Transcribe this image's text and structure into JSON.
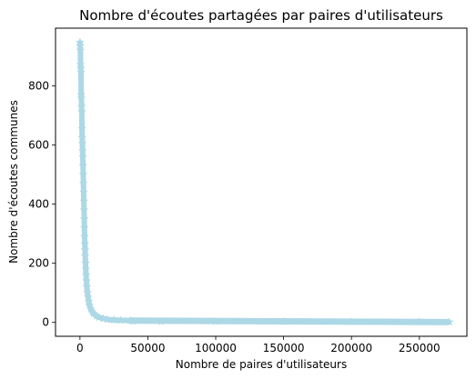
{
  "chart_data": {
    "type": "line",
    "title": "Nombre d'écoutes partagées par paires d'utilisateurs",
    "xlabel": "Nombre de paires d'utilisateurs",
    "ylabel": "Nombre d'écoutes communes",
    "xlim": [
      -18000,
      285000
    ],
    "ylim": [
      -47,
      995
    ],
    "xticks": [
      0,
      50000,
      100000,
      150000,
      200000,
      250000
    ],
    "xtick_labels": [
      "0",
      "50000",
      "100000",
      "150000",
      "200000",
      "250000"
    ],
    "yticks": [
      0,
      200,
      400,
      600,
      800
    ],
    "ytick_labels": [
      "0",
      "200",
      "400",
      "600",
      "800"
    ],
    "grid": false,
    "series": [
      {
        "color": "#add8e6",
        "marker": "star",
        "head_points": [
          [
            0,
            947
          ],
          [
            150,
            935
          ],
          [
            300,
            920
          ],
          [
            450,
            872
          ],
          [
            600,
            860
          ],
          [
            750,
            845
          ],
          [
            900,
            770
          ],
          [
            1050,
            758
          ],
          [
            1200,
            730
          ],
          [
            1350,
            712
          ],
          [
            1500,
            655
          ],
          [
            1650,
            625
          ],
          [
            1800,
            605
          ],
          [
            1950,
            580
          ],
          [
            2100,
            560
          ],
          [
            2250,
            530
          ],
          [
            2400,
            500
          ],
          [
            2550,
            470
          ],
          [
            2700,
            440
          ],
          [
            2850,
            410
          ],
          [
            3000,
            380
          ],
          [
            3150,
            350
          ],
          [
            3300,
            320
          ],
          [
            3450,
            290
          ],
          [
            3600,
            265
          ],
          [
            3750,
            245
          ],
          [
            3900,
            225
          ],
          [
            4100,
            200
          ],
          [
            4300,
            180
          ],
          [
            4500,
            160
          ],
          [
            4800,
            140
          ],
          [
            5100,
            120
          ],
          [
            5500,
            100
          ],
          [
            6000,
            85
          ],
          [
            6500,
            70
          ],
          [
            7000,
            58
          ],
          [
            8000,
            45
          ],
          [
            9000,
            36
          ],
          [
            10000,
            30
          ],
          [
            12000,
            22
          ],
          [
            14000,
            17
          ],
          [
            17000,
            13
          ],
          [
            20000,
            10
          ],
          [
            25000,
            8
          ],
          [
            30000,
            7
          ],
          [
            37000,
            6
          ],
          [
            39000,
            4
          ],
          [
            60000,
            3
          ],
          [
            100000,
            3
          ],
          [
            150000,
            3
          ],
          [
            200000,
            2
          ],
          [
            250000,
            2
          ],
          [
            272000,
            1
          ]
        ],
        "n_points": 272000
      }
    ]
  }
}
